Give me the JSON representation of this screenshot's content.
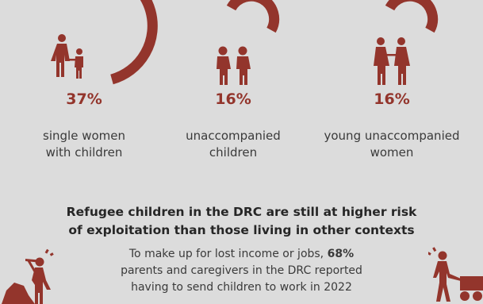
{
  "stats": [
    {
      "percent": "37%",
      "value": 37,
      "label_line1": "single women",
      "label_line2": "with children",
      "icon": "woman-with-child-icon"
    },
    {
      "percent": "16%",
      "value": 16,
      "label_line1": "unaccompanied",
      "label_line2": "children",
      "icon": "two-children-icon"
    },
    {
      "percent": "16%",
      "value": 16,
      "label_line1": "young unaccompanied",
      "label_line2": "women",
      "icon": "two-women-icon"
    }
  ],
  "headline": {
    "line1": "Refugee children in the DRC are still at higher risk",
    "line2": "of exploitation than those living in other contexts"
  },
  "body": {
    "part1": "To make up for lost income or jobs, ",
    "highlight": "68%",
    "line2": "parents and caregivers in the DRC reported",
    "line3": "having to send children to work in 2022"
  },
  "icons": {
    "left": "child-mining-icon",
    "right": "child-pushing-cart-icon"
  },
  "colors": {
    "accent": "#93352c",
    "background": "#dcdcdc",
    "text": "#3a3a3a"
  }
}
